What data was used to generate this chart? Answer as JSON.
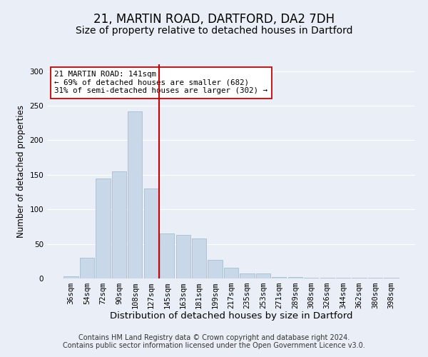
{
  "title1": "21, MARTIN ROAD, DARTFORD, DA2 7DH",
  "title2": "Size of property relative to detached houses in Dartford",
  "xlabel": "Distribution of detached houses by size in Dartford",
  "ylabel": "Number of detached properties",
  "categories": [
    "36sqm",
    "54sqm",
    "72sqm",
    "90sqm",
    "108sqm",
    "127sqm",
    "145sqm",
    "163sqm",
    "181sqm",
    "199sqm",
    "217sqm",
    "235sqm",
    "253sqm",
    "271sqm",
    "289sqm",
    "308sqm",
    "326sqm",
    "344sqm",
    "362sqm",
    "380sqm",
    "398sqm"
  ],
  "values": [
    3,
    30,
    145,
    155,
    242,
    130,
    65,
    63,
    58,
    27,
    16,
    7,
    7,
    2,
    2,
    1,
    1,
    1,
    1,
    1,
    1
  ],
  "bar_color": "#c8d8e8",
  "bar_edge_color": "#a8bece",
  "vline_index": 5.5,
  "vline_color": "#cc0000",
  "annotation_text": "21 MARTIN ROAD: 141sqm\n← 69% of detached houses are smaller (682)\n31% of semi-detached houses are larger (302) →",
  "annotation_box_color": "white",
  "annotation_box_edgecolor": "#cc0000",
  "footer1": "Contains HM Land Registry data © Crown copyright and database right 2024.",
  "footer2": "Contains public sector information licensed under the Open Government Licence v3.0.",
  "ylim": [
    0,
    310
  ],
  "yticks": [
    0,
    50,
    100,
    150,
    200,
    250,
    300
  ],
  "bg_color": "#eaeff7",
  "plot_bg_color": "#eaeff7",
  "title1_fontsize": 12,
  "title2_fontsize": 10,
  "xlabel_fontsize": 9.5,
  "ylabel_fontsize": 8.5,
  "tick_fontsize": 7.5,
  "footer_fontsize": 7
}
